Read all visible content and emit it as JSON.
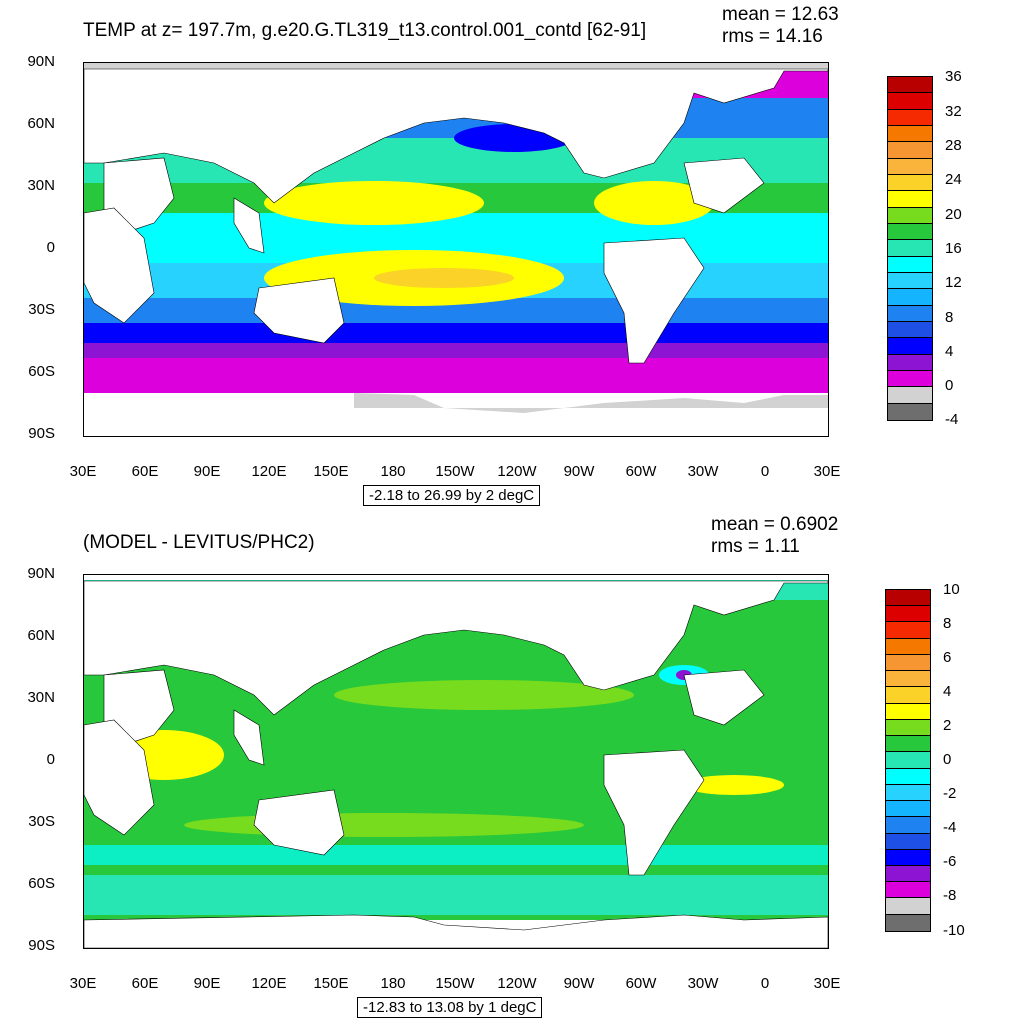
{
  "panel1": {
    "title": "TEMP at z= 197.7m, g.e20.G.TL319_t13.control.001_contd [62-91]",
    "mean": "mean = 12.63",
    "rms": "rms = 14.16",
    "range": "-2.18 to 26.99 by 2 degC",
    "lat_labels": [
      "90N",
      "60N",
      "30N",
      "0",
      "30S",
      "60S",
      "90S"
    ],
    "lon_labels": [
      "30E",
      "60E",
      "90E",
      "120E",
      "150E",
      "180",
      "150W",
      "120W",
      "90W",
      "60W",
      "30W",
      "0",
      "30E"
    ],
    "colorbar": {
      "labels": [
        "36",
        "32",
        "28",
        "24",
        "20",
        "16",
        "12",
        "8",
        "4",
        "0",
        "-4"
      ],
      "colors": [
        "#b80000",
        "#dc0000",
        "#f52a00",
        "#f57800",
        "#f59632",
        "#fab43c",
        "#fad228",
        "#ffff00",
        "#78dc1e",
        "#28c83c",
        "#28e6b4",
        "#00ffff",
        "#28d2ff",
        "#14b4ff",
        "#1e82f0",
        "#1e50e6",
        "#0000ff",
        "#8c14d2",
        "#dc00dc",
        "#d2d2d2",
        "#6e6e6e"
      ]
    }
  },
  "panel2": {
    "title": "(MODEL - LEVITUS/PHC2)",
    "mean": "mean = 0.6902",
    "rms": "rms = 1.11",
    "range": "-12.83 to 13.08 by 1 degC",
    "lat_labels": [
      "90N",
      "60N",
      "30N",
      "0",
      "30S",
      "60S",
      "90S"
    ],
    "lon_labels": [
      "30E",
      "60E",
      "90E",
      "120E",
      "150E",
      "180",
      "150W",
      "120W",
      "90W",
      "60W",
      "30W",
      "0",
      "30E"
    ],
    "colorbar": {
      "labels": [
        "10",
        "8",
        "6",
        "4",
        "2",
        "0",
        "-2",
        "-4",
        "-6",
        "-8",
        "-10"
      ],
      "colors": [
        "#b80000",
        "#dc0000",
        "#f52a00",
        "#f57800",
        "#f59632",
        "#fab43c",
        "#fad228",
        "#ffff00",
        "#78dc1e",
        "#28c83c",
        "#28e6b4",
        "#00ffff",
        "#28d2ff",
        "#14b4ff",
        "#1e82f0",
        "#1e50e6",
        "#0000ff",
        "#8c14d2",
        "#dc00dc",
        "#d2d2d2",
        "#6e6e6e"
      ]
    }
  }
}
